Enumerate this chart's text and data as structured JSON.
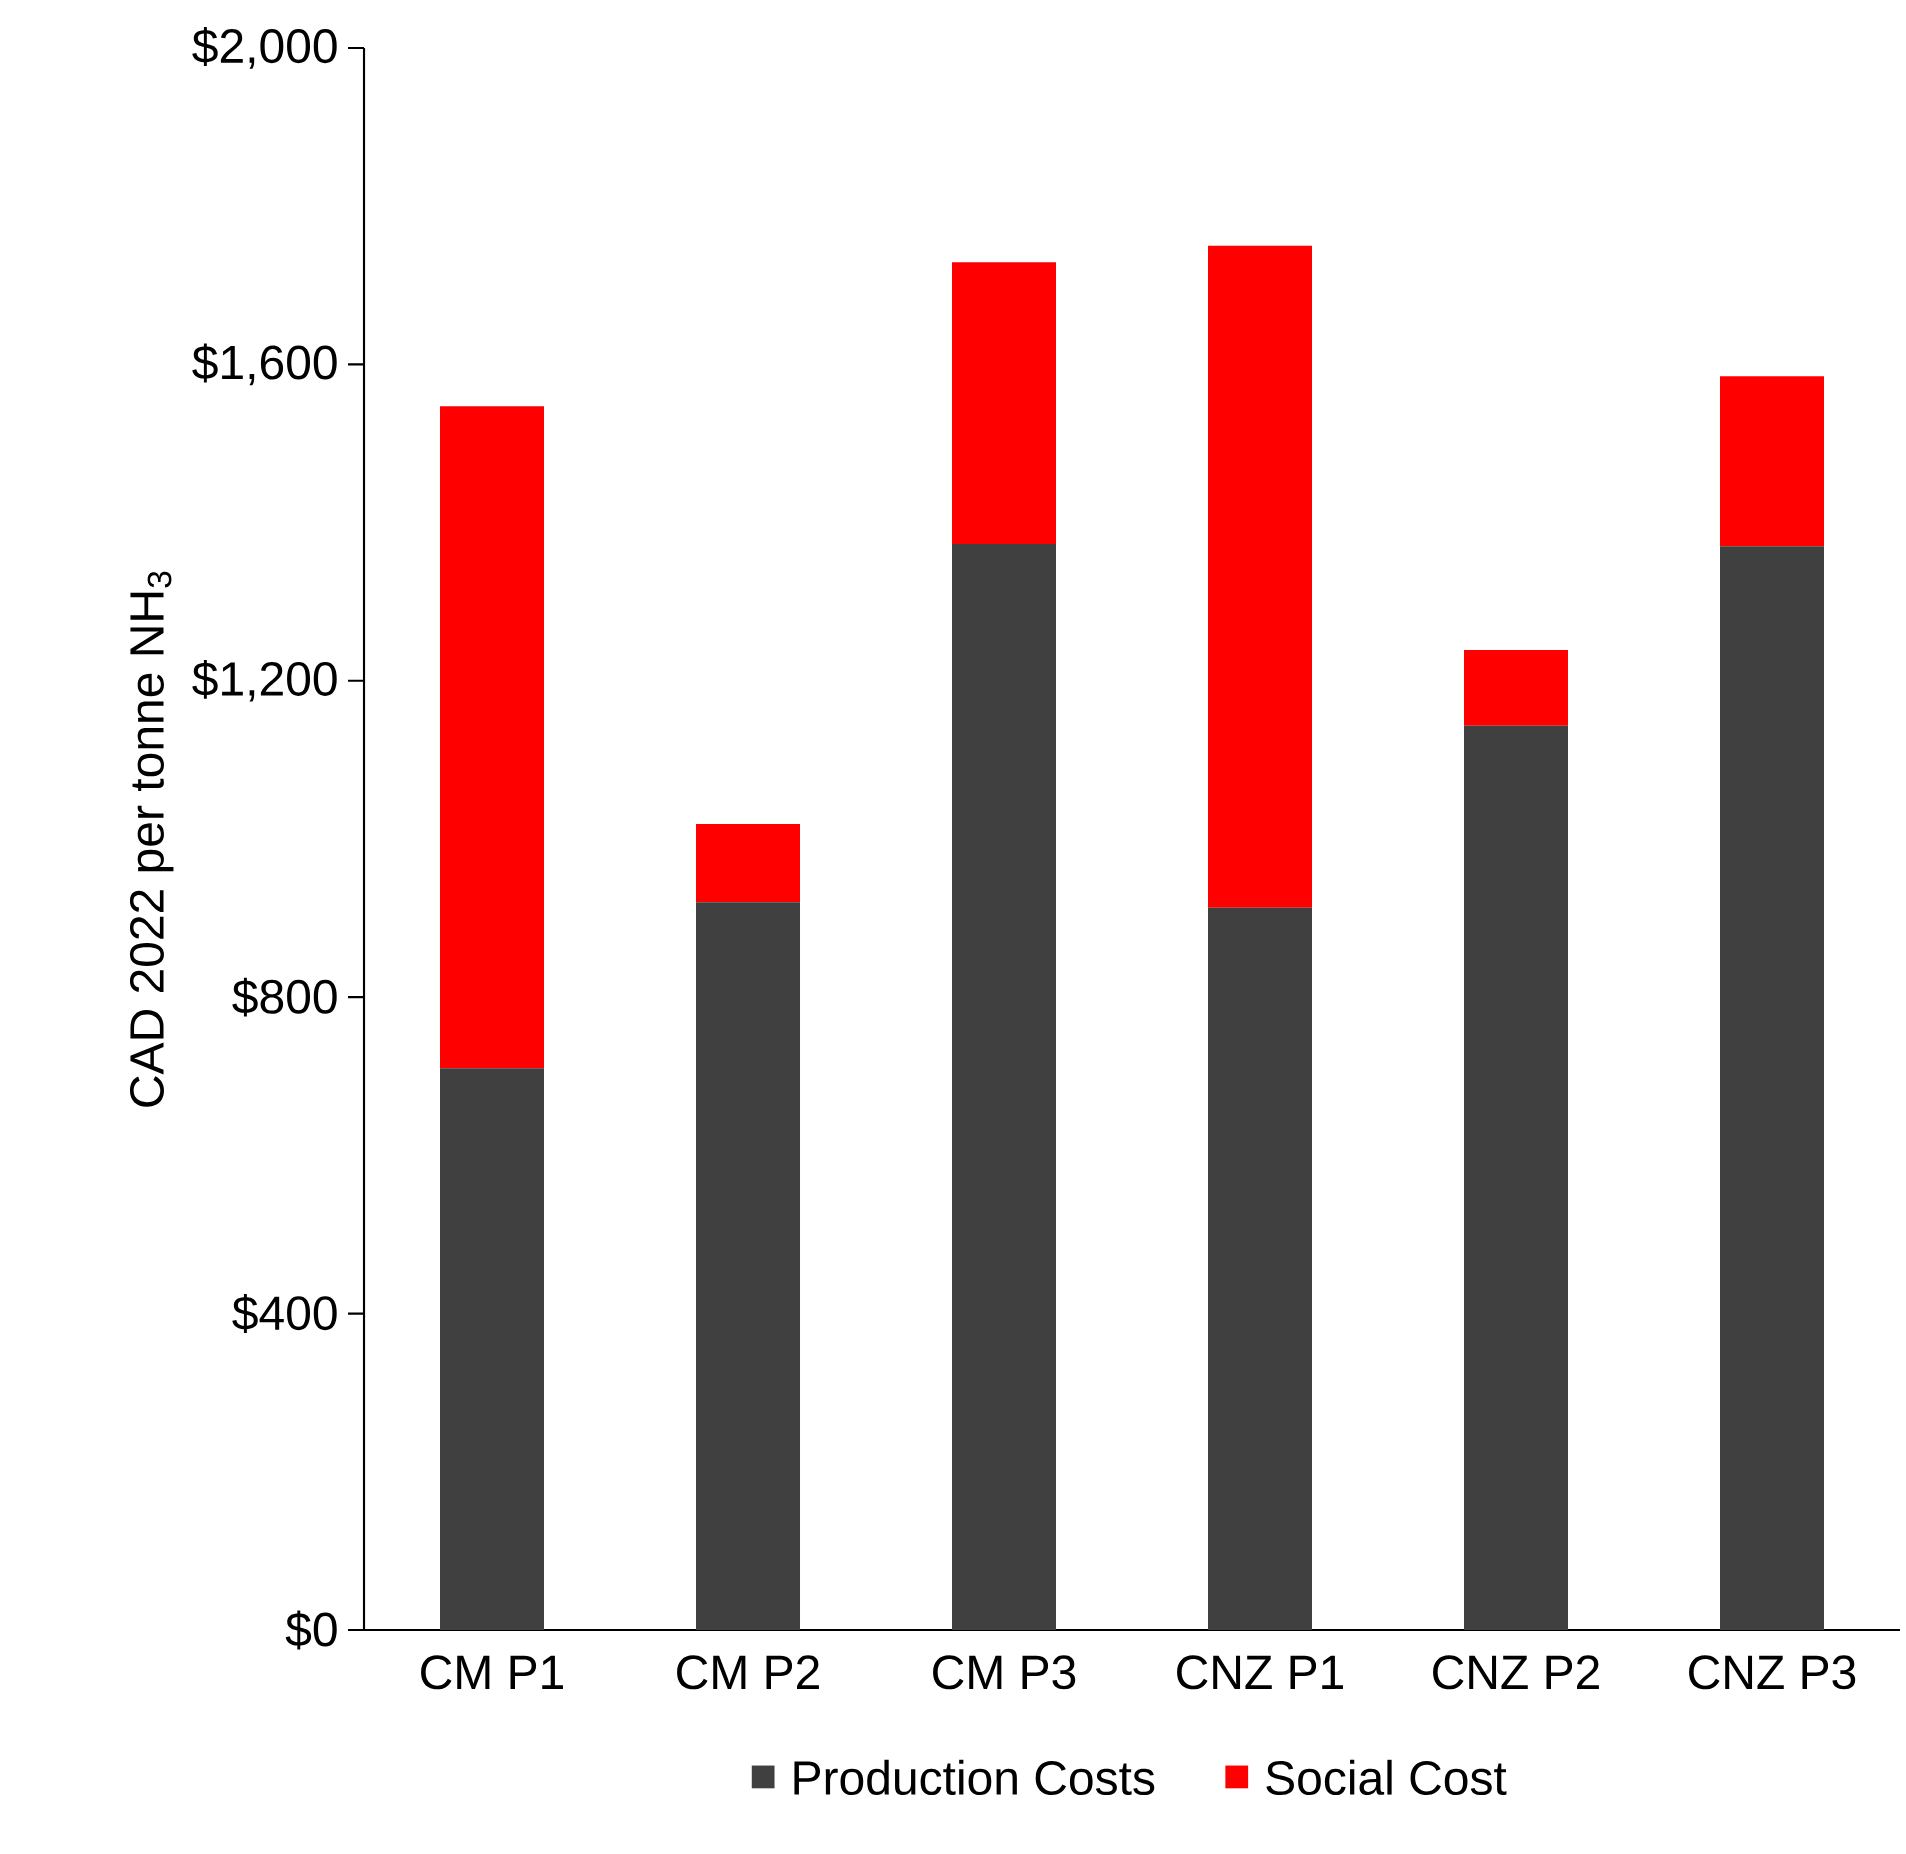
{
  "chart_data": {
    "type": "bar",
    "stacked": true,
    "ylabel": "CAD 2022 per tonne NH$_{3}$",
    "categories": [
      "CM P1",
      "CM P2",
      "CM P3",
      "CNZ P1",
      "CNZ P2",
      "CNZ P3"
    ],
    "series": [
      {
        "name": "Production Costs",
        "color": "#404040",
        "values": [
          710,
          920,
          1373,
          913,
          1143,
          1370
        ]
      },
      {
        "name": "Social Cost",
        "color": "#ff0000",
        "values": [
          837,
          99,
          356,
          837,
          96,
          215
        ]
      }
    ],
    "ylim": [
      0,
      2000
    ],
    "yticks": [
      {
        "value": 0,
        "label": "$0"
      },
      {
        "value": 400,
        "label": "$400"
      },
      {
        "value": 800,
        "label": "$800"
      },
      {
        "value": 1200,
        "label": "$1,200"
      },
      {
        "value": 1600,
        "label": "$1,600"
      },
      {
        "value": 2000,
        "label": "$2,000"
      }
    ],
    "legend": "bottom"
  }
}
